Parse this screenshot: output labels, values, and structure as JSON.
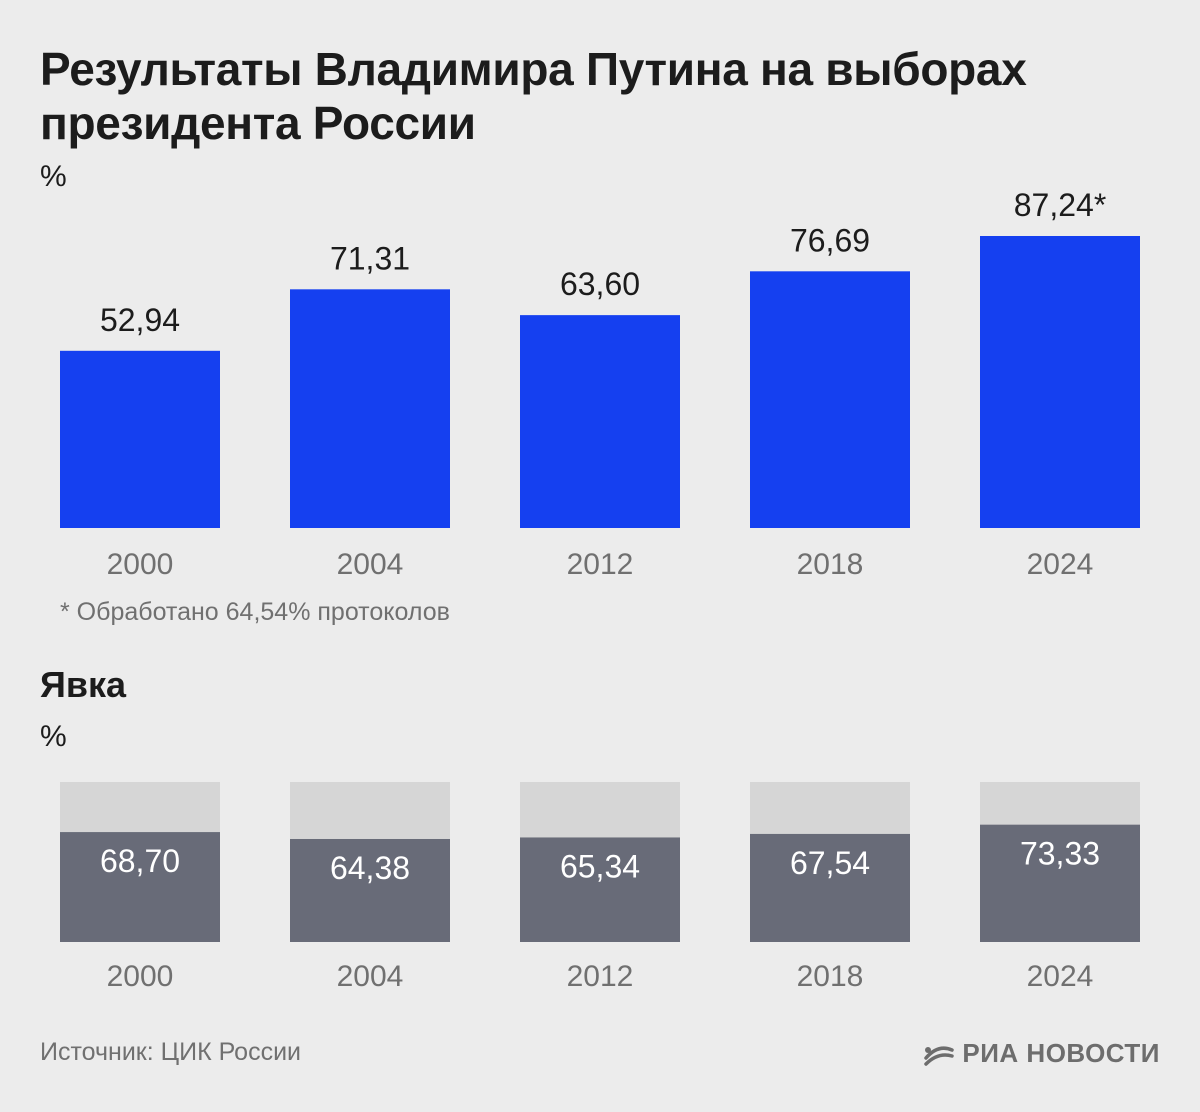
{
  "title": "Результаты Владимира Путина на выборах президента России",
  "results_unit": "%",
  "footnote": "* Обработано 64,54% протоколов",
  "turnout_title": "Явка",
  "turnout_unit": "%",
  "source": "Источник: ЦИК России",
  "logo": {
    "text": "РИА НОВОСТИ",
    "icon": "ria-logo-icon"
  },
  "colors": {
    "background": "#ececec",
    "results_bar": "#1540f0",
    "turnout_bar": "#686b78",
    "turnout_track": "#d6d6d6",
    "muted_text": "#707070"
  },
  "chart_data": [
    {
      "type": "bar",
      "title": "Результаты Владимира Путина на выборах президента России",
      "ylabel": "%",
      "xlabel": "",
      "categories": [
        "2000",
        "2004",
        "2012",
        "2018",
        "2024"
      ],
      "values": [
        52.94,
        71.31,
        63.6,
        76.69,
        87.24
      ],
      "labels": [
        "52,94",
        "71,31",
        "63,60",
        "76,69",
        "87,24*"
      ],
      "ylim": [
        0,
        100
      ],
      "grid": false
    },
    {
      "type": "bar",
      "title": "Явка",
      "ylabel": "%",
      "xlabel": "",
      "categories": [
        "2000",
        "2004",
        "2012",
        "2018",
        "2024"
      ],
      "values": [
        68.7,
        64.38,
        65.34,
        67.54,
        73.33
      ],
      "labels": [
        "68,70",
        "64,38",
        "65,34",
        "67,54",
        "73,33"
      ],
      "ylim": [
        0,
        100
      ],
      "grid": false
    }
  ]
}
